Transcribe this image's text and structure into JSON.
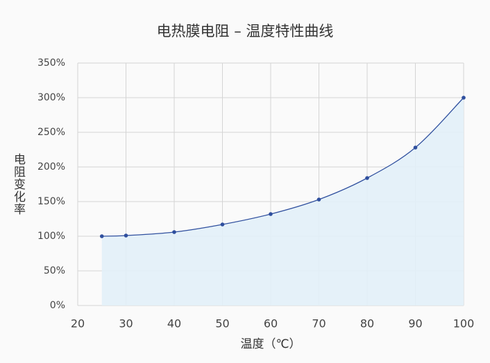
{
  "chart_data": {
    "type": "line",
    "title": "电热膜电阻 – 温度特性曲线",
    "x_label": "温度（℃）",
    "y_label": "电阻变化率",
    "x": [
      25,
      30,
      40,
      50,
      60,
      70,
      80,
      90,
      100
    ],
    "series": [
      {
        "name": "电阻变化率",
        "color": "#2f4f9e",
        "fill": "#e2eff8",
        "values": [
          100,
          101,
          106,
          117,
          132,
          153,
          184,
          228,
          300
        ]
      }
    ],
    "xlim": [
      20,
      100
    ],
    "xticks": [
      20,
      30,
      40,
      50,
      60,
      70,
      80,
      90,
      100
    ],
    "ylim": [
      0,
      350
    ],
    "yticks": [
      {
        "value": 0,
        "label": "0%"
      },
      {
        "value": 50,
        "label": "50%"
      },
      {
        "value": 100,
        "label": "100%"
      },
      {
        "value": 150,
        "label": "150%"
      },
      {
        "value": 200,
        "label": "200%"
      },
      {
        "value": 250,
        "label": "250%"
      },
      {
        "value": 300,
        "label": "300%"
      },
      {
        "value": 350,
        "label": "350%"
      }
    ],
    "grid": true
  }
}
